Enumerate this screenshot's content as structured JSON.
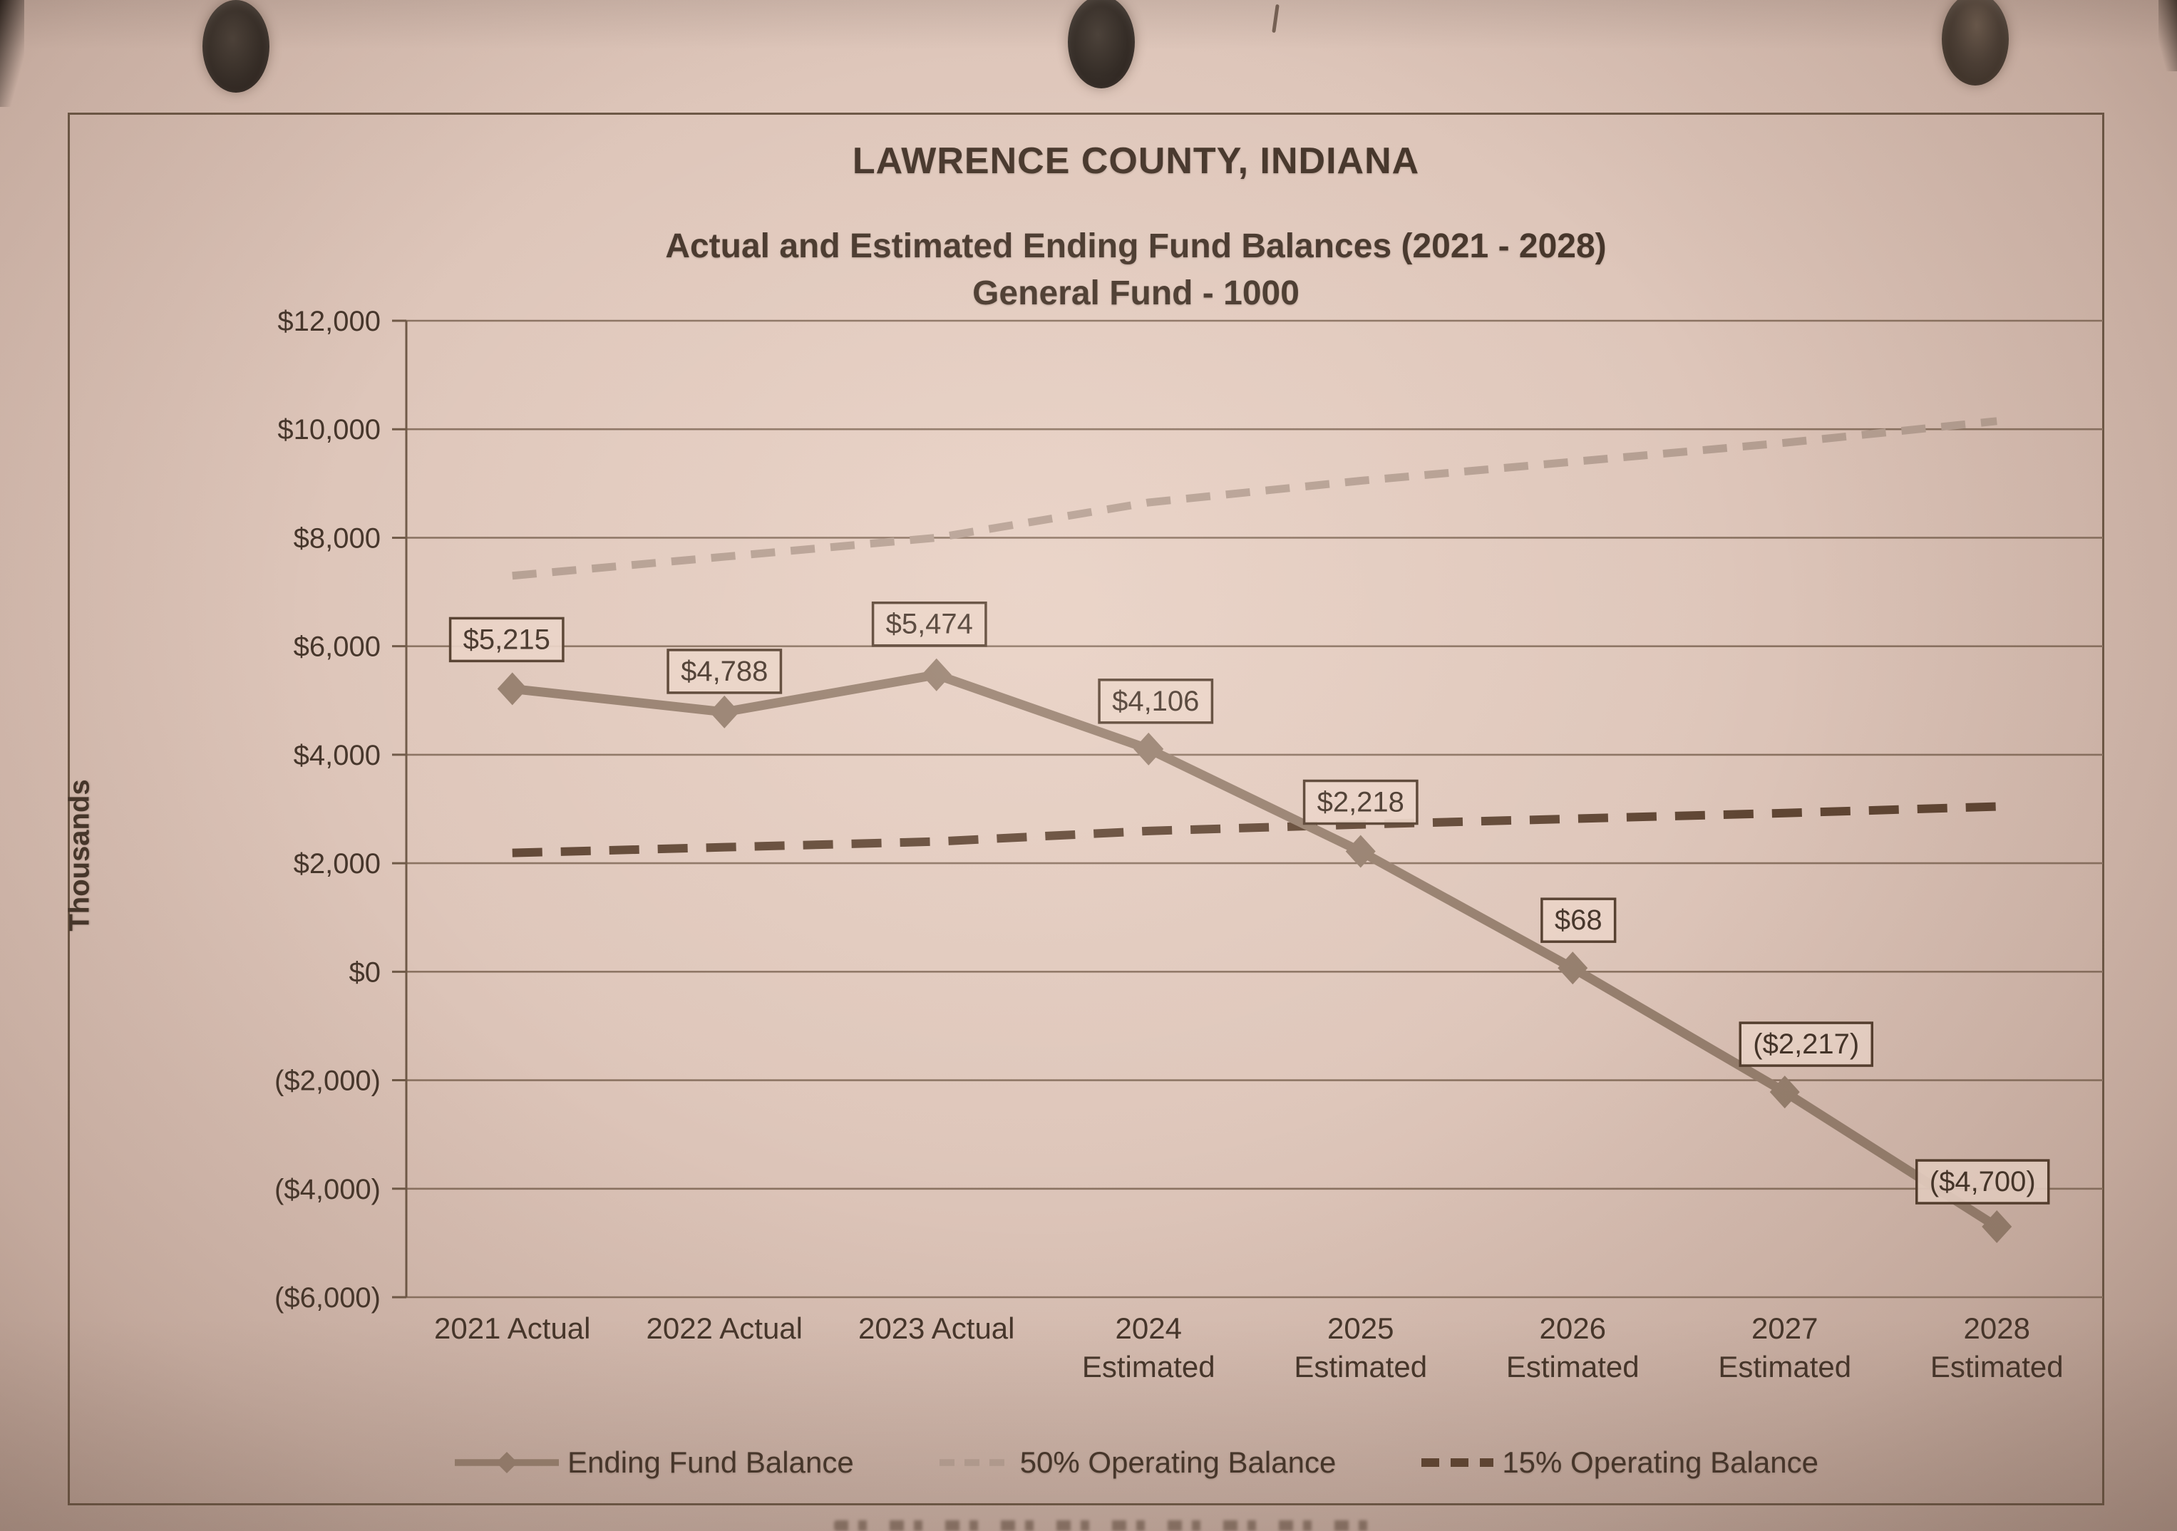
{
  "header": {
    "title": "LAWRENCE COUNTY, INDIANA",
    "subtitle_line1": "Actual and Estimated Ending Fund Balances (2021 - 2028)",
    "subtitle_line2": "General Fund - 1000"
  },
  "colors": {
    "paper": "#ddc5b9",
    "ink": "#46362b",
    "gridline": "#8a7261",
    "ending_fund_balance_line": "#957e6d",
    "operating_50_line": "#b49e91",
    "operating_15_line": "#5f4533",
    "label_box_fill": "#e9d3c6",
    "label_box_border": "#543e2e"
  },
  "chart_data": {
    "type": "line",
    "title": "LAWRENCE COUNTY, INDIANA",
    "subtitle": "Actual and Estimated Ending Fund Balances (2021 - 2028)",
    "subtitle2": "General Fund - 1000",
    "ylabel": "Thousands",
    "ylim": [
      -6000,
      12000
    ],
    "ytick_step": 2000,
    "ytick_labels": [
      "$12,000",
      "$10,000",
      "$8,000",
      "$6,000",
      "$4,000",
      "$2,000",
      "$0",
      "($2,000)",
      "($4,000)",
      "($6,000)"
    ],
    "categories": [
      "2021 Actual",
      "2022 Actual",
      "2023 Actual",
      "2024\nEstimated",
      "2025\nEstimated",
      "2026\nEstimated",
      "2027\nEstimated",
      "2028\nEstimated"
    ],
    "grid": true,
    "legend_position": "bottom",
    "series": [
      {
        "name": "Ending Fund Balance",
        "marker": "diamond",
        "line_style": "solid",
        "color": "#957e6d",
        "values": [
          5215,
          4788,
          5474,
          4106,
          2218,
          68,
          -2217,
          -4700
        ],
        "data_labels": [
          "$5,215",
          "$4,788",
          "$5,474",
          "$4,106",
          "$2,218",
          "$68",
          "($2,217)",
          "($4,700)"
        ]
      },
      {
        "name": "50% Operating Balance",
        "marker": "none",
        "line_style": "dashed",
        "color": "#b49e91",
        "values": [
          7300,
          7650,
          8000,
          8650,
          9050,
          9400,
          9750,
          10150
        ]
      },
      {
        "name": "15% Operating Balance",
        "marker": "none",
        "line_style": "dashed",
        "color": "#5f4533",
        "values": [
          2190,
          2295,
          2400,
          2595,
          2715,
          2820,
          2925,
          3045
        ]
      }
    ]
  }
}
